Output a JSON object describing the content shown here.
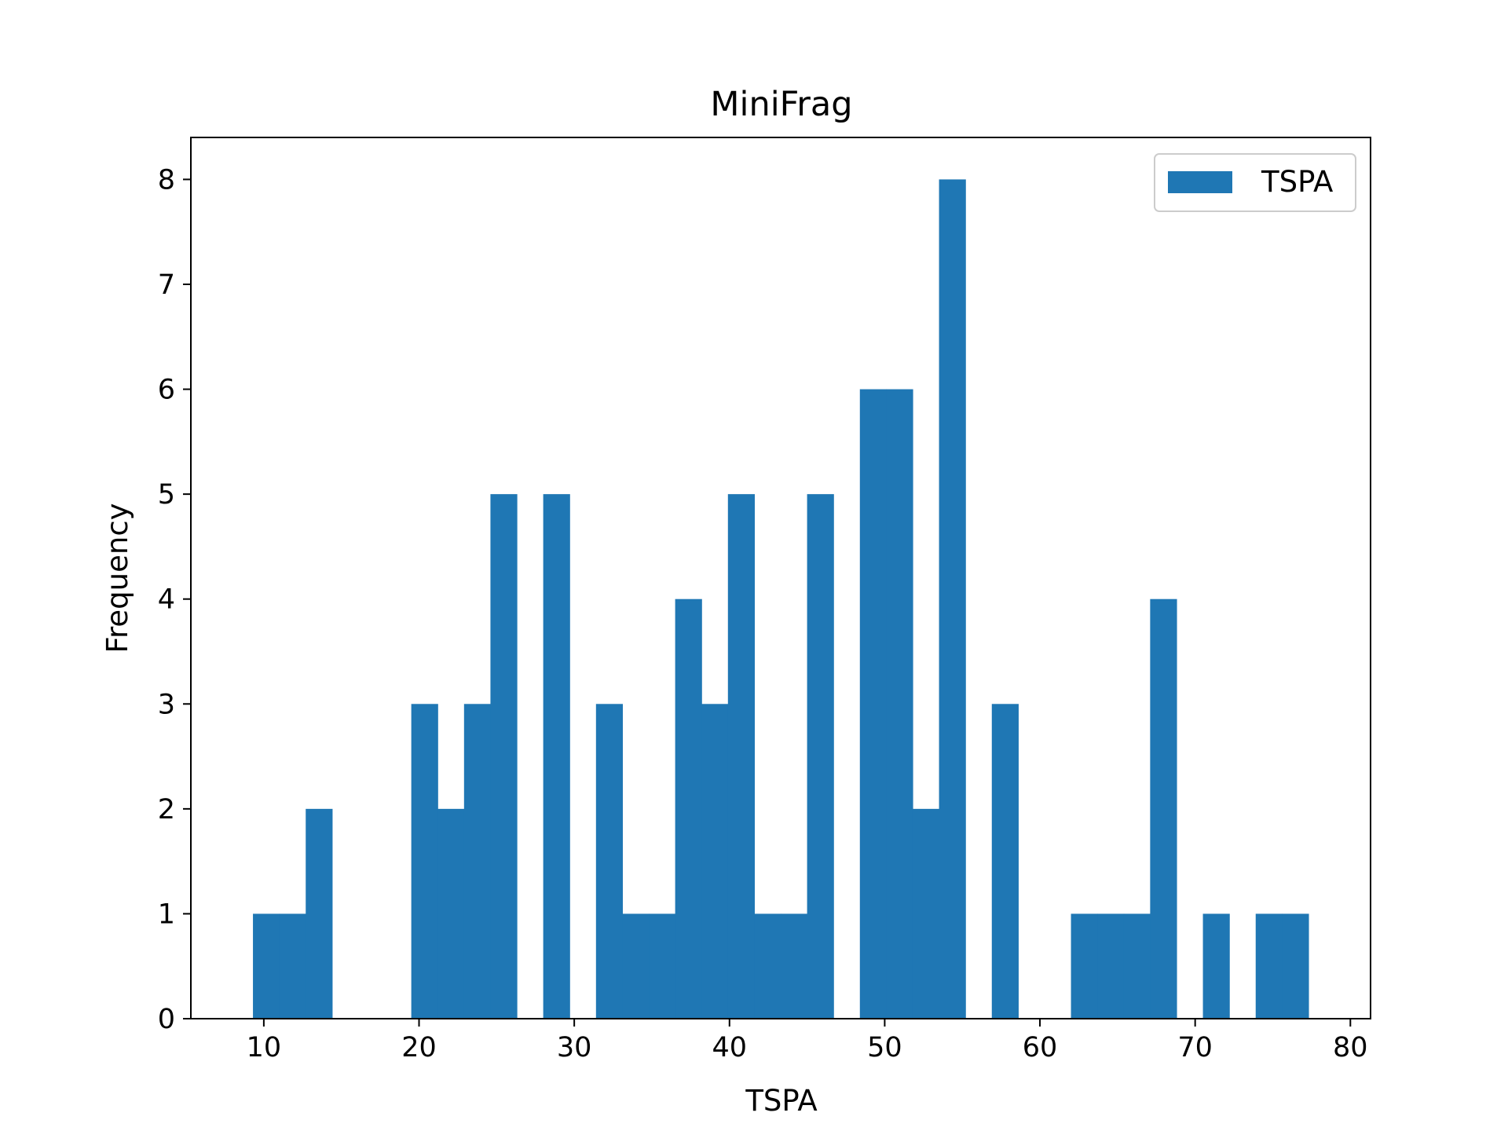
{
  "chart_data": {
    "type": "bar",
    "title": "MiniFrag",
    "xlabel": "TSPA",
    "ylabel": "Frequency",
    "xlim": [
      5.3,
      81.3
    ],
    "ylim": [
      0,
      8.4
    ],
    "xticks": [
      10,
      20,
      30,
      40,
      50,
      60,
      70,
      80
    ],
    "yticks": [
      0,
      1,
      2,
      3,
      4,
      5,
      6,
      7,
      8
    ],
    "bin_start": 9.3,
    "bin_width": 1.7,
    "counts": [
      1,
      1,
      2,
      0,
      0,
      0,
      3,
      2,
      3,
      5,
      0,
      5,
      0,
      3,
      1,
      1,
      4,
      3,
      5,
      1,
      1,
      5,
      0,
      6,
      6,
      2,
      8,
      0,
      3,
      0,
      0,
      1,
      1,
      1,
      4,
      0,
      1,
      0,
      1,
      1
    ],
    "legend": {
      "label": "TSPA",
      "placement": "upper-right"
    },
    "grid": false,
    "colors": {
      "bar": "#1f77b4",
      "axis": "#000000",
      "legend_border": "#cccccc"
    }
  }
}
